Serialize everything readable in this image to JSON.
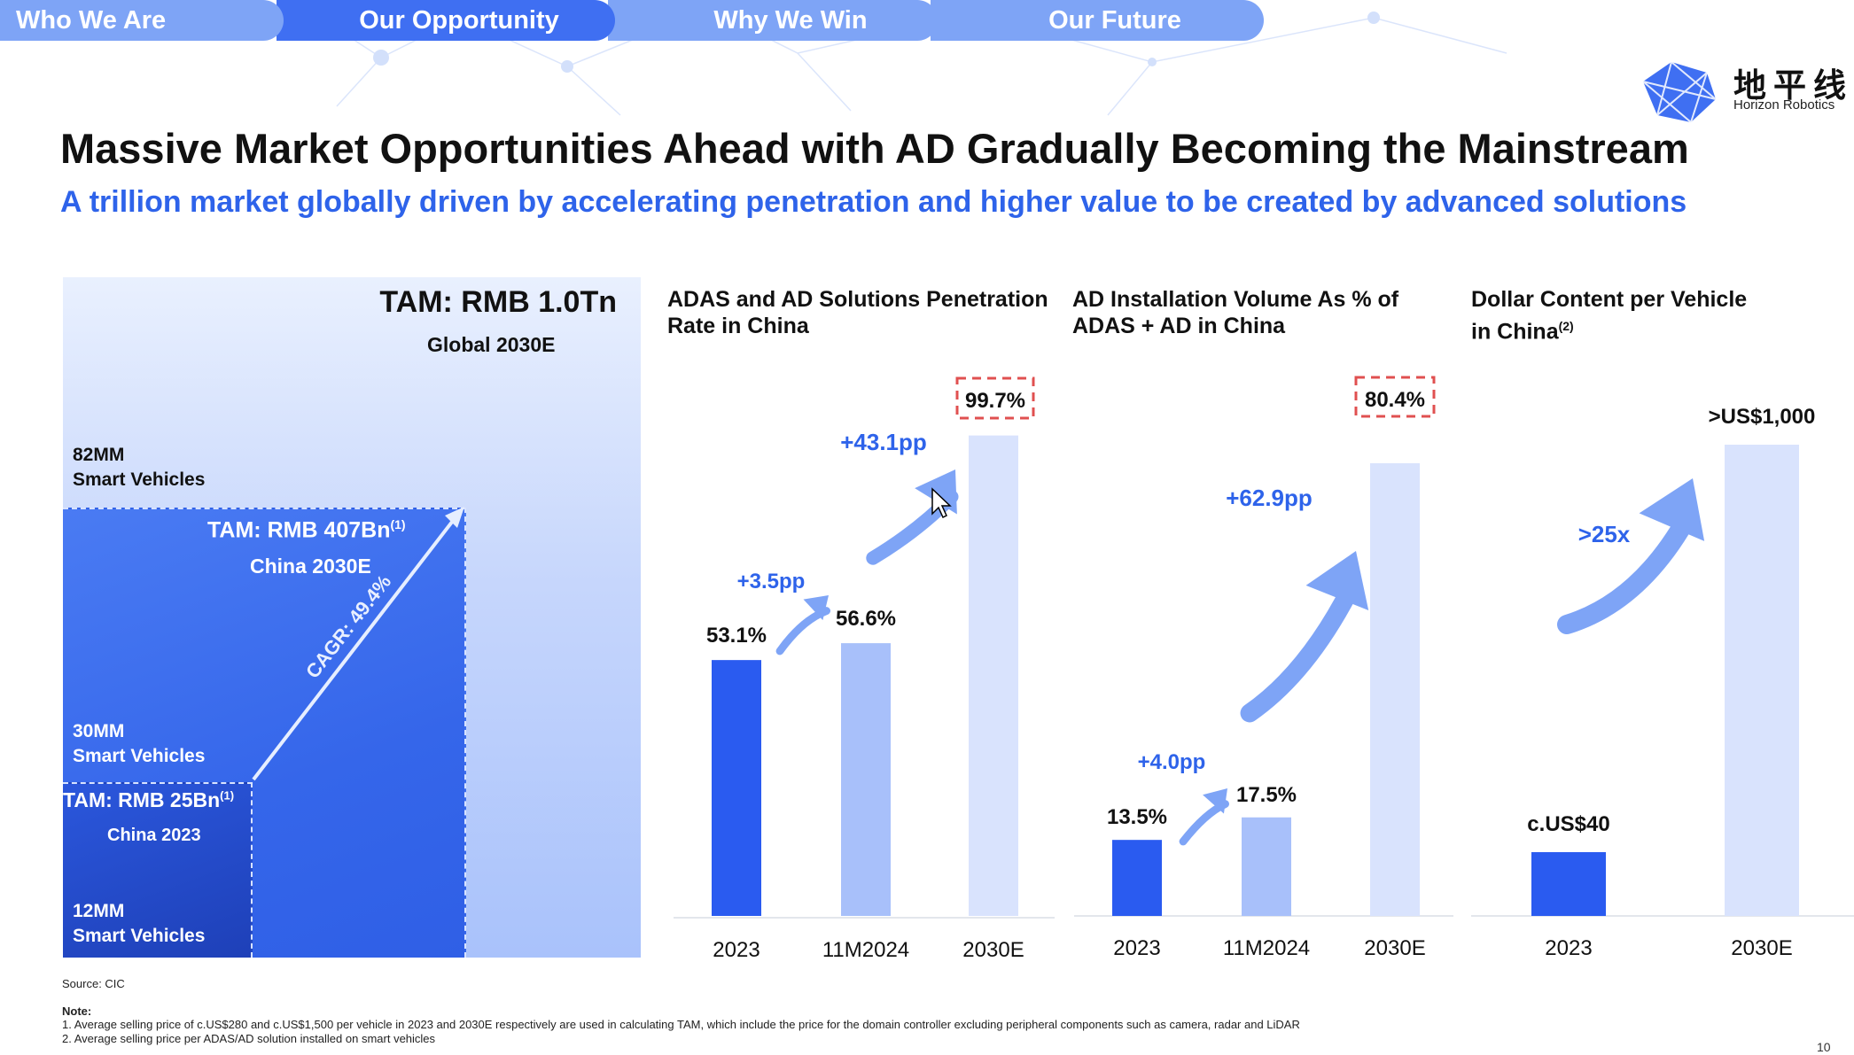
{
  "nav": {
    "tabs": [
      {
        "label": "Who We Are"
      },
      {
        "label": "Our Opportunity"
      },
      {
        "label": "Why We Win"
      },
      {
        "label": "Our Future"
      }
    ]
  },
  "logo": {
    "cn": "地平线",
    "en": "Horizon Robotics"
  },
  "title": "Massive Market Opportunities Ahead with AD Gradually Becoming the Mainstream",
  "subtitle": "A trillion market globally driven by accelerating penetration and higher value to be created by advanced solutions",
  "tam": {
    "global_label": "TAM: RMB 1.0Tn",
    "global_sub": "Global 2030E",
    "global_vehicles": "82MM",
    "global_vehicles_label": "Smart Vehicles",
    "china2030_label": "TAM: RMB 407Bn",
    "china2030_sup": "(1)",
    "china2030_sub": "China 2030E",
    "china2030_vehicles": "30MM",
    "china2030_vehicles_label": "Smart Vehicles",
    "china2023_label": "TAM: RMB 25Bn",
    "china2023_sup": "(1)",
    "china2023_sub": "China 2023",
    "china2023_vehicles": "12MM",
    "china2023_vehicles_label": "Smart Vehicles",
    "cagr": "CAGR: 49.4%"
  },
  "chart_data": [
    {
      "type": "bar",
      "title": "ADAS and AD Solutions Penetration Rate in China",
      "categories": [
        "2023",
        "11M2024",
        "2030E"
      ],
      "values": [
        53.1,
        56.6,
        99.7
      ],
      "labels": [
        "53.1%",
        "56.6%",
        "99.7%"
      ],
      "unit": "%",
      "ylim": [
        0,
        100
      ],
      "highlight_last": true,
      "annotations": [
        "+3.5pp",
        "+43.1pp"
      ],
      "colors": [
        "#2a5bf0",
        "#a8c0fa",
        "#d9e3fd"
      ]
    },
    {
      "type": "bar",
      "title": "AD Installation Volume As % of ADAS + AD in China",
      "categories": [
        "2023",
        "11M2024",
        "2030E"
      ],
      "values": [
        13.5,
        17.5,
        80.4
      ],
      "labels": [
        "13.5%",
        "17.5%",
        "80.4%"
      ],
      "unit": "%",
      "ylim": [
        0,
        84
      ],
      "highlight_last": true,
      "annotations": [
        "+4.0pp",
        "+62.9pp"
      ],
      "colors": [
        "#2a5bf0",
        "#a8c0fa",
        "#d9e3fd"
      ]
    },
    {
      "type": "bar",
      "title": "Dollar Content per Vehicle in China",
      "title_sup": "(2)",
      "categories": [
        "2023",
        "2030E"
      ],
      "values": [
        40,
        1000
      ],
      "labels": [
        "c.US$40",
        ">US$1,000"
      ],
      "unit": "US$",
      "display_heights_note": "not to scale",
      "annotations": [
        ">25x"
      ],
      "colors": [
        "#2a5bf0",
        "#d9e3fd"
      ]
    }
  ],
  "source": "Source: CIC",
  "notes": {
    "heading": "Note:",
    "items": [
      "1.  Average selling price of c.US$280 and c.US$1,500 per vehicle in 2023 and 2030E respectively are used in calculating TAM, which include the price for the domain controller excluding peripheral components such as camera, radar and LiDAR",
      "2.  Average selling price per ADAS/AD solution installed on smart vehicles"
    ]
  },
  "page_number": "10"
}
